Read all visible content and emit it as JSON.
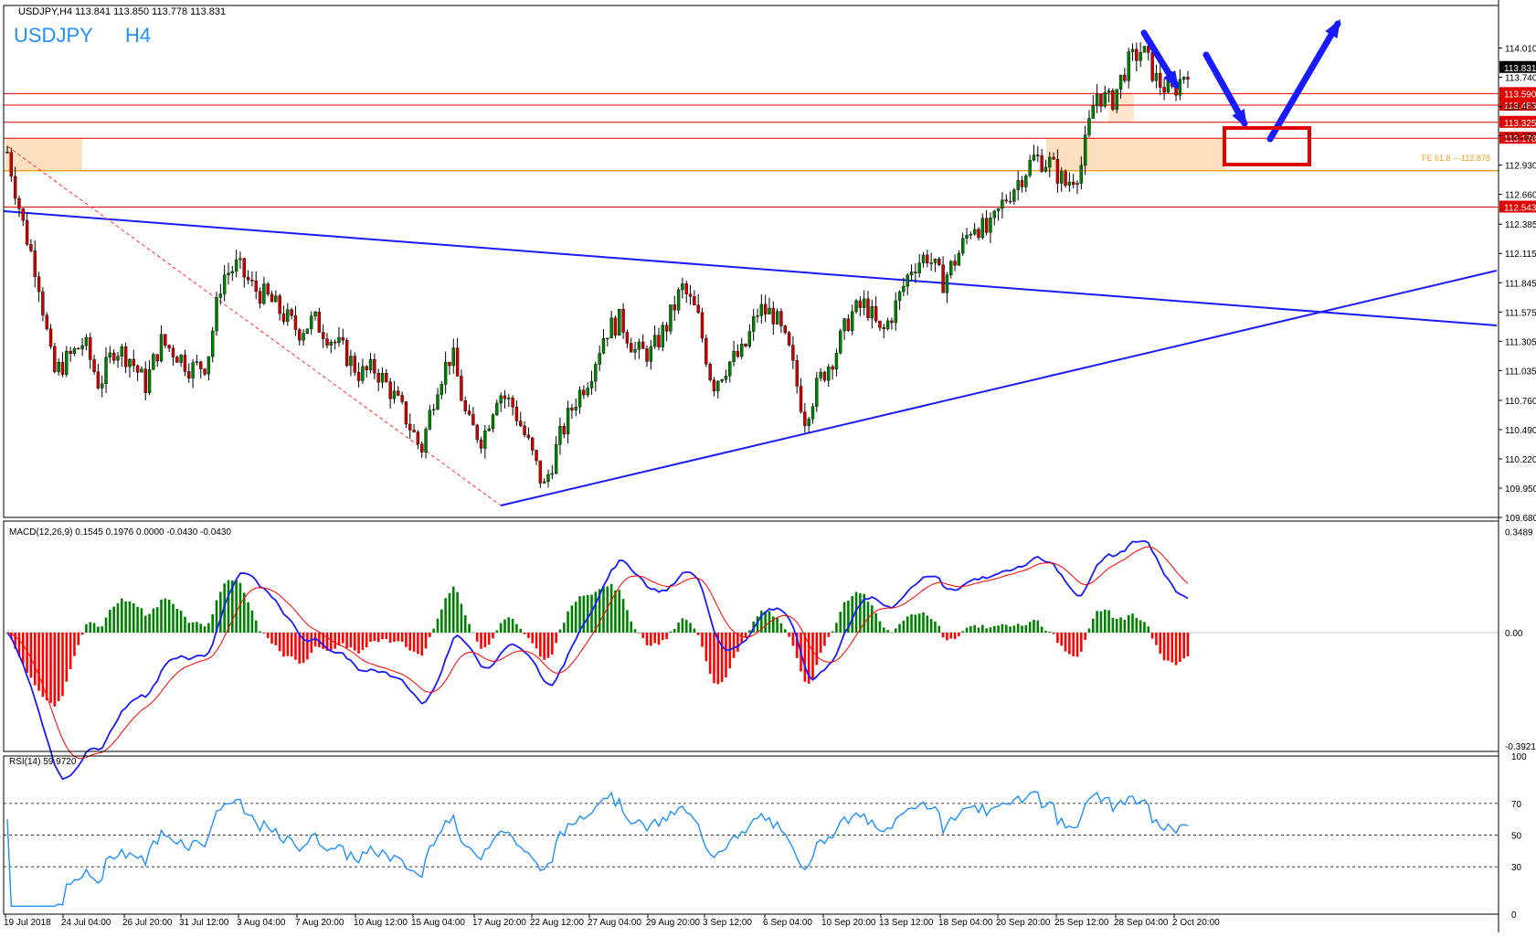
{
  "header": {
    "info": "USDJPY,H4  113.841 113.850 113.778 113.831",
    "symbol": "USDJPY",
    "timeframe": "H4"
  },
  "colors": {
    "bull": "#008000",
    "bear": "#cc0000",
    "level": "#e00000",
    "trend": "#1a1aff",
    "fib": "#f0a020",
    "zone": "#fde0c0",
    "macd_line": "#1a1aff",
    "signal_line": "#ff0000",
    "rsi_line": "#1e90ff",
    "arrow": "#1a1aff",
    "target_box": "#e00000"
  },
  "chart_data": [
    {
      "type": "candlestick",
      "title": "USDJPY H4",
      "price_axis": {
        "range": [
          109.68,
          114.2
        ],
        "ticks": [
          "114.010",
          "113.740",
          "113.470",
          "113.200",
          "112.930",
          "112.660",
          "112.385",
          "112.115",
          "111.845",
          "111.575",
          "111.305",
          "111.035",
          "110.760",
          "110.490",
          "110.220",
          "109.950",
          "109.680"
        ]
      },
      "time_axis": [
        "19 Jul 2018",
        "24 Jul 04:00",
        "26 Jul 20:00",
        "31 Jul 12:00",
        "3 Aug 04:00",
        "7 Aug 20:00",
        "10 Aug 12:00",
        "15 Aug 04:00",
        "17 Aug 20:00",
        "22 Aug 12:00",
        "27 Aug 04:00",
        "29 Aug 20:00",
        "3 Sep 12:00",
        "6 Sep 04:00",
        "10 Sep 20:00",
        "13 Sep 12:00",
        "18 Sep 04:00",
        "20 Sep 20:00",
        "25 Sep 12:00",
        "28 Sep 04:00",
        "2 Oct 20:00"
      ],
      "current_price": "113.831",
      "levels": [
        "113.590",
        "113.483",
        "113.325",
        "113.178",
        "112.543"
      ],
      "fib_label": "FE 61.8 ---112.878",
      "close_path": [
        113.05,
        112.4,
        111.9,
        111.0,
        111.15,
        111.3,
        110.9,
        111.25,
        111.15,
        110.9,
        111.3,
        111.2,
        111.05,
        111.1,
        111.9,
        112.0,
        111.8,
        111.7,
        111.55,
        111.4,
        111.5,
        111.35,
        111.2,
        111.0,
        111.05,
        110.85,
        110.6,
        110.3,
        110.9,
        111.2,
        110.55,
        110.4,
        110.85,
        110.7,
        110.35,
        109.95,
        110.4,
        110.75,
        111.0,
        111.4,
        111.5,
        111.2,
        111.2,
        111.45,
        111.8,
        111.55,
        110.9,
        111.1,
        111.2,
        111.6,
        111.55,
        111.2,
        110.6,
        110.95,
        111.2,
        111.55,
        111.65,
        111.35,
        111.65,
        112.0,
        112.1,
        111.85,
        112.1,
        112.4,
        112.3,
        112.6,
        112.8,
        113.0,
        112.95,
        112.75,
        112.9,
        113.6,
        113.5,
        113.85,
        114.0,
        113.7,
        113.6,
        113.83
      ],
      "close_path_unit": "approximate closing price, evenly spaced from 19 Jul to 2 Oct"
    },
    {
      "type": "line",
      "title": "MACD(12,26,9) 0.1545 0.1976 0.0000 -0.0430 -0.0430",
      "ticks": [
        "0.3489",
        "0.00",
        "-0.3921"
      ],
      "range": [
        -0.4,
        0.36
      ]
    },
    {
      "type": "line",
      "title": "RSI(14) 59.9720",
      "ticks": [
        "100",
        "70",
        "50",
        "30",
        "0"
      ],
      "range": [
        0,
        100
      ],
      "reference_levels": [
        70,
        50,
        30
      ]
    }
  ]
}
